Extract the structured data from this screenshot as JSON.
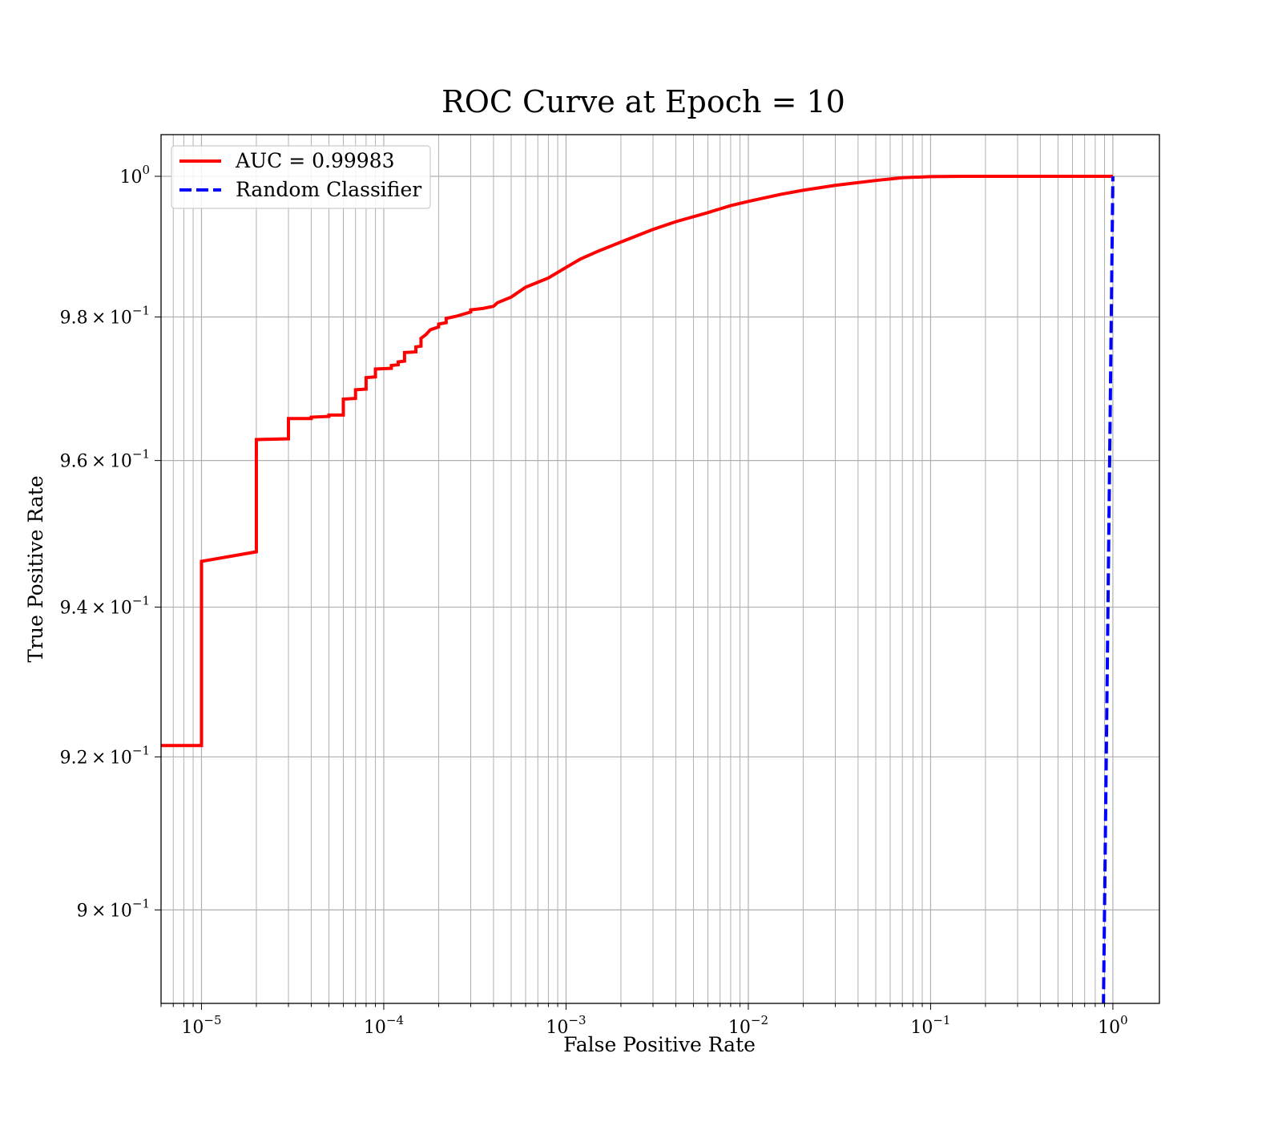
{
  "chart_data": {
    "type": "line",
    "title": "ROC Curve at Epoch = 10",
    "xlabel": "False Positive Rate",
    "ylabel": "True Positive Rate",
    "xscale": "log",
    "yscale": "log",
    "xlim": [
      6e-06,
      1.8
    ],
    "ylim": [
      0.888,
      1.006
    ],
    "grid": true,
    "grid_minor": true,
    "legend_placement": "upper-left",
    "x_ticks": [
      {
        "value": 1e-05,
        "base": "10",
        "exp": "−5"
      },
      {
        "value": 0.0001,
        "base": "10",
        "exp": "−4"
      },
      {
        "value": 0.001,
        "base": "10",
        "exp": "−3"
      },
      {
        "value": 0.01,
        "base": "10",
        "exp": "−2"
      },
      {
        "value": 0.1,
        "base": "10",
        "exp": "−1"
      },
      {
        "value": 1,
        "base": "10",
        "exp": "0"
      }
    ],
    "y_ticks": [
      {
        "value": 0.9,
        "mant": "9",
        "exp": "−1"
      },
      {
        "value": 0.92,
        "mant": "9.2",
        "exp": "−1"
      },
      {
        "value": 0.94,
        "mant": "9.4",
        "exp": "−1"
      },
      {
        "value": 0.96,
        "mant": "9.6",
        "exp": "−1"
      },
      {
        "value": 0.98,
        "mant": "9.8",
        "exp": "−1"
      },
      {
        "value": 1.0,
        "mant": "",
        "exp": "0"
      }
    ],
    "times_symbol": "×",
    "series": [
      {
        "name": "AUC = 0.99983",
        "color": "#ff0000",
        "style": "solid",
        "x": [
          6e-06,
          1e-05,
          1e-05,
          2e-05,
          2e-05,
          3e-05,
          3e-05,
          4e-05,
          4e-05,
          5e-05,
          5e-05,
          6e-05,
          6e-05,
          7e-05,
          7e-05,
          8e-05,
          8e-05,
          9e-05,
          9e-05,
          0.00011,
          0.00011,
          0.00012,
          0.00012,
          0.00013,
          0.00013,
          0.00015,
          0.00015,
          0.00016,
          0.00016,
          0.00017,
          0.00018,
          0.00019,
          0.0002,
          0.0002,
          0.00022,
          0.00022,
          0.00025,
          0.0003,
          0.0003,
          0.00035,
          0.0004,
          0.00042,
          0.0005,
          0.0006,
          0.0008,
          0.001,
          0.0012,
          0.0015,
          0.002,
          0.003,
          0.004,
          0.006,
          0.008,
          0.01,
          0.015,
          0.02,
          0.03,
          0.05,
          0.07,
          0.1,
          0.15,
          1.0
        ],
        "y": [
          0.9215,
          0.9215,
          0.9462,
          0.9475,
          0.9629,
          0.963,
          0.9658,
          0.9658,
          0.966,
          0.9661,
          0.9663,
          0.9663,
          0.9685,
          0.9686,
          0.9698,
          0.9699,
          0.9715,
          0.9716,
          0.9727,
          0.9728,
          0.9732,
          0.9733,
          0.9737,
          0.9738,
          0.975,
          0.9751,
          0.9758,
          0.9759,
          0.977,
          0.9775,
          0.9782,
          0.9784,
          0.9786,
          0.979,
          0.9792,
          0.9798,
          0.9801,
          0.9807,
          0.981,
          0.9812,
          0.9815,
          0.982,
          0.9828,
          0.9842,
          0.9855,
          0.987,
          0.9882,
          0.9893,
          0.9906,
          0.9924,
          0.9935,
          0.9948,
          0.9958,
          0.9964,
          0.9974,
          0.998,
          0.9987,
          0.9994,
          0.9998,
          0.99995,
          1.0,
          1.0
        ]
      },
      {
        "name": "Random Classifier",
        "color": "#0000ff",
        "style": "dashed",
        "x": [
          0.0,
          1.0
        ],
        "y": [
          0.0,
          1.0
        ]
      }
    ]
  }
}
